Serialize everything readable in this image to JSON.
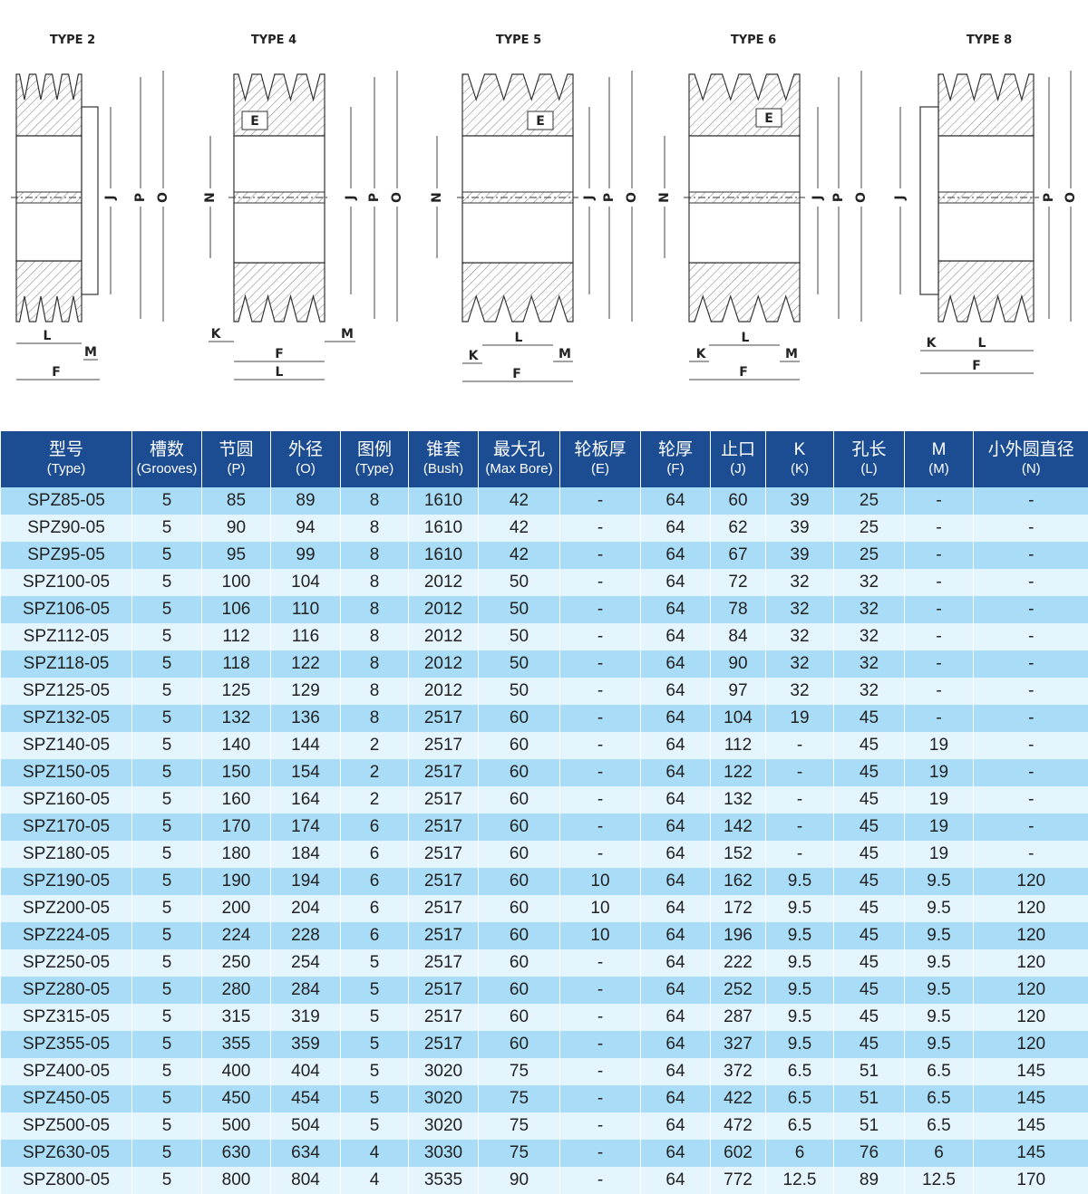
{
  "diagrams": [
    {
      "title": "TYPE 2",
      "labels": [
        "J",
        "P",
        "O",
        "L",
        "M",
        "F"
      ]
    },
    {
      "title": "TYPE 4",
      "labels": [
        "E",
        "N",
        "J",
        "P",
        "O",
        "K",
        "F",
        "M",
        "L"
      ]
    },
    {
      "title": "TYPE 5",
      "labels": [
        "E",
        "N",
        "J",
        "P",
        "O",
        "K",
        "L",
        "M",
        "F"
      ]
    },
    {
      "title": "TYPE 6",
      "labels": [
        "E",
        "N",
        "J",
        "P",
        "O",
        "K",
        "L",
        "M",
        "F"
      ]
    },
    {
      "title": "TYPE 8",
      "labels": [
        "J",
        "P",
        "O",
        "K",
        "L",
        "F"
      ]
    }
  ],
  "table": {
    "header": [
      [
        "型号",
        "(Type)"
      ],
      [
        "槽数",
        "(Grooves)"
      ],
      [
        "节圆",
        "(P)"
      ],
      [
        "外径",
        "(O)"
      ],
      [
        "图例",
        "(Type)"
      ],
      [
        "锥套",
        "(Bush)"
      ],
      [
        "最大孔",
        "(Max Bore)"
      ],
      [
        "轮板厚",
        "(E)"
      ],
      [
        "轮厚",
        "(F)"
      ],
      [
        "止口",
        "(J)"
      ],
      [
        "K",
        "(K)"
      ],
      [
        "孔长",
        "(L)"
      ],
      [
        "M",
        "(M)"
      ],
      [
        "小外圆直径",
        "(N)"
      ]
    ],
    "rows": [
      [
        "SPZ85-05",
        5,
        85,
        89,
        8,
        1610,
        42,
        "-",
        64,
        60,
        39,
        25,
        "-",
        "-"
      ],
      [
        "SPZ90-05",
        5,
        90,
        94,
        8,
        1610,
        42,
        "-",
        64,
        62,
        39,
        25,
        "-",
        "-"
      ],
      [
        "SPZ95-05",
        5,
        95,
        99,
        8,
        1610,
        42,
        "-",
        64,
        67,
        39,
        25,
        "-",
        "-"
      ],
      [
        "SPZ100-05",
        5,
        100,
        104,
        8,
        2012,
        50,
        "-",
        64,
        72,
        32,
        32,
        "-",
        "-"
      ],
      [
        "SPZ106-05",
        5,
        106,
        110,
        8,
        2012,
        50,
        "-",
        64,
        78,
        32,
        32,
        "-",
        "-"
      ],
      [
        "SPZ112-05",
        5,
        112,
        116,
        8,
        2012,
        50,
        "-",
        64,
        84,
        32,
        32,
        "-",
        "-"
      ],
      [
        "SPZ118-05",
        5,
        118,
        122,
        8,
        2012,
        50,
        "-",
        64,
        90,
        32,
        32,
        "-",
        "-"
      ],
      [
        "SPZ125-05",
        5,
        125,
        129,
        8,
        2012,
        50,
        "-",
        64,
        97,
        32,
        32,
        "-",
        "-"
      ],
      [
        "SPZ132-05",
        5,
        132,
        136,
        8,
        2517,
        60,
        "-",
        64,
        104,
        19,
        45,
        "-",
        "-"
      ],
      [
        "SPZ140-05",
        5,
        140,
        144,
        2,
        2517,
        60,
        "-",
        64,
        112,
        "-",
        45,
        19,
        "-"
      ],
      [
        "SPZ150-05",
        5,
        150,
        154,
        2,
        2517,
        60,
        "-",
        64,
        122,
        "-",
        45,
        19,
        "-"
      ],
      [
        "SPZ160-05",
        5,
        160,
        164,
        2,
        2517,
        60,
        "-",
        64,
        132,
        "-",
        45,
        19,
        "-"
      ],
      [
        "SPZ170-05",
        5,
        170,
        174,
        6,
        2517,
        60,
        "-",
        64,
        142,
        "-",
        45,
        19,
        "-"
      ],
      [
        "SPZ180-05",
        5,
        180,
        184,
        6,
        2517,
        60,
        "-",
        64,
        152,
        "-",
        45,
        19,
        "-"
      ],
      [
        "SPZ190-05",
        5,
        190,
        194,
        6,
        2517,
        60,
        10,
        64,
        162,
        9.5,
        45,
        9.5,
        120
      ],
      [
        "SPZ200-05",
        5,
        200,
        204,
        6,
        2517,
        60,
        10,
        64,
        172,
        9.5,
        45,
        9.5,
        120
      ],
      [
        "SPZ224-05",
        5,
        224,
        228,
        6,
        2517,
        60,
        10,
        64,
        196,
        9.5,
        45,
        9.5,
        120
      ],
      [
        "SPZ250-05",
        5,
        250,
        254,
        5,
        2517,
        60,
        "-",
        64,
        222,
        9.5,
        45,
        9.5,
        120
      ],
      [
        "SPZ280-05",
        5,
        280,
        284,
        5,
        2517,
        60,
        "-",
        64,
        252,
        9.5,
        45,
        9.5,
        120
      ],
      [
        "SPZ315-05",
        5,
        315,
        319,
        5,
        2517,
        60,
        "-",
        64,
        287,
        9.5,
        45,
        9.5,
        120
      ],
      [
        "SPZ355-05",
        5,
        355,
        359,
        5,
        2517,
        60,
        "-",
        64,
        327,
        9.5,
        45,
        9.5,
        120
      ],
      [
        "SPZ400-05",
        5,
        400,
        404,
        5,
        3020,
        75,
        "-",
        64,
        372,
        6.5,
        51,
        6.5,
        145
      ],
      [
        "SPZ450-05",
        5,
        450,
        454,
        5,
        3020,
        75,
        "-",
        64,
        422,
        6.5,
        51,
        6.5,
        145
      ],
      [
        "SPZ500-05",
        5,
        500,
        504,
        5,
        3020,
        75,
        "-",
        64,
        472,
        6.5,
        51,
        6.5,
        145
      ],
      [
        "SPZ630-05",
        5,
        630,
        634,
        4,
        3030,
        75,
        "-",
        64,
        602,
        6,
        76,
        6,
        145
      ],
      [
        "SPZ800-05",
        5,
        800,
        804,
        4,
        3535,
        90,
        "-",
        64,
        772,
        12.5,
        89,
        12.5,
        170
      ]
    ]
  }
}
